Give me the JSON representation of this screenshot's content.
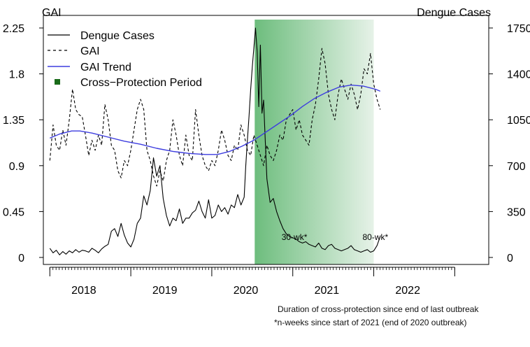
{
  "chart_data": {
    "type": "line",
    "left_axis_label": "GAI",
    "right_axis_label": "Dengue Cases",
    "left_ticks": [
      "0",
      "0.45",
      "0.9",
      "1.35",
      "1.8",
      "2.25"
    ],
    "left_tick_values": [
      0,
      0.45,
      0.9,
      1.35,
      1.8,
      2.25
    ],
    "right_ticks": [
      "0",
      "350",
      "700",
      "1050",
      "1400",
      "1750"
    ],
    "right_tick_values": [
      0,
      350,
      700,
      1050,
      1400,
      1750
    ],
    "y_left_range": [
      0,
      2.25
    ],
    "y_right_range": [
      0,
      1750
    ],
    "x_range": [
      2017.5,
      2023.0
    ],
    "year_labels": [
      {
        "label": "2018",
        "x": 2018.0
      },
      {
        "label": "2019",
        "x": 2019.0
      },
      {
        "label": "2020",
        "x": 2020.0
      },
      {
        "label": "2021",
        "x": 2021.0
      },
      {
        "label": "2022",
        "x": 2022.0
      }
    ],
    "year_boundaries": [
      2017.58,
      2018.58,
      2019.58,
      2020.58,
      2021.58,
      2022.58
    ],
    "legend": [
      {
        "label": "Dengue Cases",
        "style": "solid-black"
      },
      {
        "label": "GAI",
        "style": "dashed-black"
      },
      {
        "label": "GAI Trend",
        "style": "solid-blue"
      },
      {
        "label": "Cross−Protection Period",
        "style": "green-square"
      }
    ],
    "legend_position": "top-left",
    "shaded_region": {
      "start": 2020.11,
      "end": 2021.58,
      "color_start": "#6dbd7d",
      "color_end": "#e6f2e8"
    },
    "annotations": [
      {
        "text": "30-wk*",
        "x": 2020.6,
        "y_cases": 220
      },
      {
        "text": "80-wk*",
        "x": 2021.6,
        "y_cases": 220
      }
    ],
    "series": [
      {
        "name": "Dengue Cases",
        "axis": "right",
        "color": "#000000",
        "x": [
          2017.58,
          2017.62,
          2017.66,
          2017.7,
          2017.74,
          2017.78,
          2017.82,
          2017.86,
          2017.9,
          2017.94,
          2017.98,
          2018.02,
          2018.06,
          2018.1,
          2018.14,
          2018.18,
          2018.22,
          2018.26,
          2018.3,
          2018.34,
          2018.38,
          2018.42,
          2018.46,
          2018.5,
          2018.54,
          2018.58,
          2018.62,
          2018.66,
          2018.7,
          2018.74,
          2018.78,
          2018.82,
          2018.86,
          2018.9,
          2018.94,
          2018.98,
          2019.02,
          2019.06,
          2019.1,
          2019.14,
          2019.18,
          2019.22,
          2019.26,
          2019.3,
          2019.34,
          2019.38,
          2019.42,
          2019.46,
          2019.5,
          2019.54,
          2019.58,
          2019.62,
          2019.66,
          2019.7,
          2019.74,
          2019.78,
          2019.82,
          2019.86,
          2019.9,
          2019.94,
          2019.98,
          2020.0,
          2020.02,
          2020.04,
          2020.06,
          2020.08,
          2020.1,
          2020.12,
          2020.14,
          2020.16,
          2020.18,
          2020.2,
          2020.22,
          2020.24,
          2020.26,
          2020.3,
          2020.34,
          2020.38,
          2020.42,
          2020.46,
          2020.5,
          2020.54,
          2020.58,
          2020.62,
          2020.66,
          2020.7,
          2020.74,
          2020.78,
          2020.82,
          2020.86,
          2020.9,
          2020.94,
          2020.98,
          2021.02,
          2021.06,
          2021.1,
          2021.14,
          2021.18,
          2021.22,
          2021.26,
          2021.3,
          2021.34,
          2021.38,
          2021.42,
          2021.46,
          2021.5,
          2021.54,
          2021.58,
          2021.62,
          2021.66
        ],
        "values": [
          70,
          35,
          55,
          20,
          45,
          25,
          50,
          35,
          60,
          40,
          55,
          50,
          40,
          70,
          55,
          35,
          65,
          85,
          100,
          200,
          220,
          160,
          260,
          170,
          110,
          80,
          140,
          260,
          300,
          470,
          400,
          510,
          760,
          620,
          700,
          450,
          320,
          240,
          300,
          280,
          370,
          260,
          300,
          300,
          340,
          360,
          430,
          350,
          300,
          440,
          300,
          320,
          400,
          350,
          380,
          330,
          400,
          380,
          480,
          400,
          460,
          700,
          900,
          1080,
          1280,
          1450,
          1600,
          1750,
          1570,
          1150,
          1620,
          1100,
          1200,
          900,
          600,
          420,
          450,
          350,
          280,
          220,
          180,
          160,
          150,
          140,
          120,
          110,
          120,
          100,
          90,
          80,
          110,
          70,
          60,
          90,
          100,
          70,
          60,
          50,
          60,
          70,
          90,
          60,
          50,
          40,
          50,
          60,
          40,
          50,
          90,
          160
        ]
      },
      {
        "name": "GAI",
        "axis": "left",
        "color": "#000000",
        "x": [
          2017.58,
          2017.62,
          2017.66,
          2017.7,
          2017.74,
          2017.78,
          2017.82,
          2017.86,
          2017.9,
          2017.94,
          2017.98,
          2018.02,
          2018.06,
          2018.1,
          2018.14,
          2018.18,
          2018.22,
          2018.26,
          2018.3,
          2018.34,
          2018.38,
          2018.42,
          2018.46,
          2018.5,
          2018.54,
          2018.58,
          2018.62,
          2018.66,
          2018.7,
          2018.74,
          2018.78,
          2018.82,
          2018.86,
          2018.9,
          2018.94,
          2018.98,
          2019.02,
          2019.06,
          2019.1,
          2019.14,
          2019.18,
          2019.22,
          2019.26,
          2019.3,
          2019.34,
          2019.38,
          2019.42,
          2019.46,
          2019.5,
          2019.54,
          2019.58,
          2019.62,
          2019.66,
          2019.7,
          2019.74,
          2019.78,
          2019.82,
          2019.86,
          2019.9,
          2019.94,
          2019.98,
          2020.02,
          2020.06,
          2020.1,
          2020.14,
          2020.18,
          2020.22,
          2020.26,
          2020.3,
          2020.34,
          2020.38,
          2020.42,
          2020.46,
          2020.5,
          2020.54,
          2020.58,
          2020.62,
          2020.66,
          2020.7,
          2020.74,
          2020.78,
          2020.82,
          2020.86,
          2020.9,
          2020.94,
          2020.98,
          2021.02,
          2021.06,
          2021.1,
          2021.14,
          2021.18,
          2021.22,
          2021.26,
          2021.3,
          2021.34,
          2021.38,
          2021.42,
          2021.46,
          2021.5,
          2021.54,
          2021.58,
          2021.62,
          2021.66
        ],
        "values": [
          0.95,
          1.3,
          1.1,
          1.05,
          1.25,
          1.1,
          1.35,
          1.65,
          1.45,
          1.4,
          1.38,
          1.2,
          1.0,
          1.15,
          1.05,
          1.2,
          1.1,
          1.5,
          1.35,
          1.1,
          1.05,
          0.85,
          0.78,
          0.95,
          0.9,
          1.05,
          1.25,
          1.45,
          1.55,
          1.45,
          1.05,
          0.95,
          0.8,
          0.7,
          0.85,
          0.75,
          0.95,
          1.05,
          1.35,
          1.2,
          1.0,
          0.9,
          1.2,
          1.0,
          0.95,
          1.45,
          1.2,
          1.0,
          0.9,
          0.85,
          0.95,
          0.9,
          1.05,
          1.25,
          1.15,
          1.0,
          0.95,
          1.1,
          1.05,
          1.3,
          1.2,
          1.05,
          1.0,
          1.2,
          1.1,
          1.0,
          0.9,
          1.1,
          1.0,
          0.95,
          1.05,
          1.2,
          1.15,
          1.35,
          1.4,
          1.45,
          1.25,
          1.35,
          1.2,
          1.15,
          1.1,
          1.35,
          1.5,
          1.75,
          2.05,
          1.9,
          1.6,
          1.45,
          1.35,
          1.6,
          1.75,
          1.65,
          1.55,
          1.7,
          1.6,
          1.45,
          1.6,
          1.85,
          1.8,
          2.0,
          1.7,
          1.55,
          1.45
        ]
      },
      {
        "name": "GAI Trend",
        "axis": "left",
        "color": "#3d3ddf",
        "x": [
          2017.58,
          2017.7,
          2017.85,
          2017.95,
          2018.1,
          2018.3,
          2018.5,
          2018.7,
          2018.9,
          2019.1,
          2019.3,
          2019.5,
          2019.65,
          2019.8,
          2019.95,
          2020.1,
          2020.25,
          2020.4,
          2020.55,
          2020.7,
          2020.85,
          2021.0,
          2021.15,
          2021.3,
          2021.45,
          2021.6,
          2021.66
        ],
        "values": [
          1.17,
          1.21,
          1.24,
          1.24,
          1.22,
          1.18,
          1.14,
          1.11,
          1.07,
          1.04,
          1.02,
          1.01,
          1.01,
          1.04,
          1.09,
          1.15,
          1.23,
          1.31,
          1.39,
          1.48,
          1.56,
          1.62,
          1.67,
          1.69,
          1.68,
          1.65,
          1.63
        ]
      }
    ]
  },
  "footnote": {
    "line1": "Duration of cross-protection since end of last outbreak",
    "line2": "*n-weeks since start of 2021 (end of 2020 outbreak)"
  }
}
